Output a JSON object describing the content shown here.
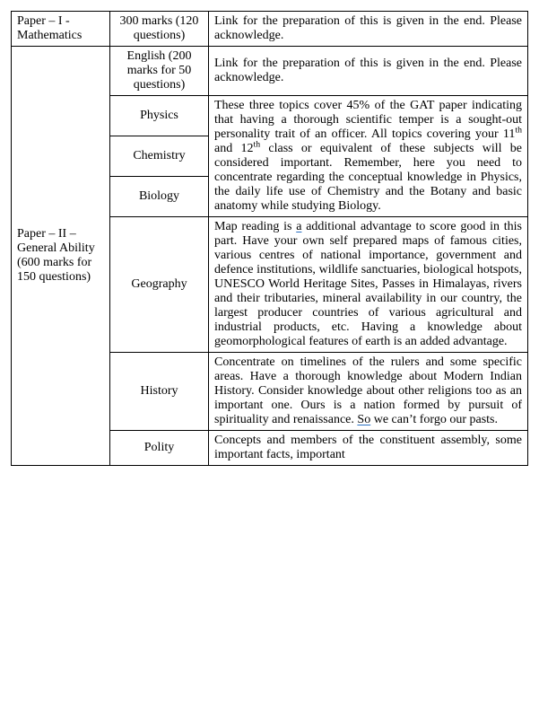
{
  "rows": {
    "r1c1": "Paper – I - Mathematics",
    "r1c2": "300 marks (120 questions)",
    "r1c3": "Link for the preparation of this is given in the end. Please acknowledge.",
    "r2c1": "Paper – II – General Ability (600 marks for 150 questions)",
    "r2c2": "English (200 marks for 50 questions)",
    "r2c3": "Link for the preparation of this is given in the end. Please acknowledge.",
    "r3c2": "Physics",
    "r4c2": "Chemistry",
    "r5c2": "Biology",
    "r3c3_a": "These three topics cover 45% of the GAT paper indicating that having a thorough scientific temper is a sought-out personality trait of an officer. All topics covering your 11",
    "r3c3_b": "th",
    "r3c3_c": " and 12",
    "r3c3_d": "th",
    "r3c3_e": " class or equivalent of these subjects will be considered important. Remember, here you need to concentrate regarding the conceptual knowledge in Physics, the daily life use of Chemistry and the Botany and basic anatomy while studying Biology.",
    "r6c2": "Geography",
    "r6c3_a": "Map reading is ",
    "r6c3_b": "a",
    "r6c3_c": " additional advantage to score good in this part. Have your own self prepared maps of famous cities, various centres of national importance, government and defence institutions, wildlife sanctuaries, biological hotspots, UNESCO World Heritage Sites, Passes in Himalayas, rivers and their tributaries, mineral availability in our country, the largest producer countries of various agricultural and industrial products, etc. Having a knowledge about geomorphological features of earth is an added advantage.",
    "r7c2": "History",
    "r7c3_a": "Concentrate on timelines of the rulers and some specific areas. Have a thorough knowledge about Modern Indian History. Consider knowledge about other religions too as an important one. Ours is a nation formed by pursuit of spirituality and renaissance. ",
    "r7c3_b": "So",
    "r7c3_c": " we can’t forgo our pasts.",
    "r8c2": "Polity",
    "r8c3": "Concepts and members of the constituent assembly, some important facts, important"
  }
}
